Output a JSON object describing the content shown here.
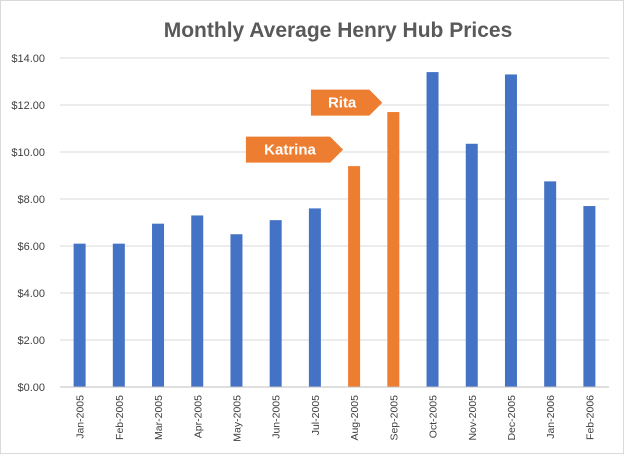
{
  "chart_data": {
    "type": "bar",
    "title": "Monthly Average Henry Hub Prices",
    "categories": [
      "Jan-2005",
      "Feb-2005",
      "Mar-2005",
      "Apr-2005",
      "May-2005",
      "Jun-2005",
      "Jul-2005",
      "Aug-2005",
      "Sep-2005",
      "Oct-2005",
      "Nov-2005",
      "Dec-2005",
      "Jan-2006",
      "Feb-2006"
    ],
    "values": [
      6.1,
      6.1,
      6.95,
      7.3,
      6.5,
      7.1,
      7.6,
      9.4,
      11.7,
      13.4,
      10.35,
      13.3,
      8.75,
      7.7
    ],
    "ylim": [
      0,
      14
    ],
    "yticks": [
      0,
      2,
      4,
      6,
      8,
      10,
      12,
      14
    ],
    "ytick_labels": [
      "$0.00",
      "$2.00",
      "$4.00",
      "$6.00",
      "$8.00",
      "$10.00",
      "$12.00",
      "$14.00"
    ],
    "xlabel": "",
    "ylabel": "",
    "grid": true,
    "legend": "none",
    "colors": {
      "default_bar": "#4472C4",
      "highlight_bar": "#ED7D31",
      "gridline": "#d9d9d9",
      "title": "#595959"
    },
    "highlighted_categories": [
      "Aug-2005",
      "Sep-2005"
    ],
    "annotations": [
      {
        "text": "Katrina",
        "category": "Aug-2005",
        "y": 10.1
      },
      {
        "text": "Rita",
        "category": "Sep-2005",
        "y": 12.1
      }
    ]
  }
}
